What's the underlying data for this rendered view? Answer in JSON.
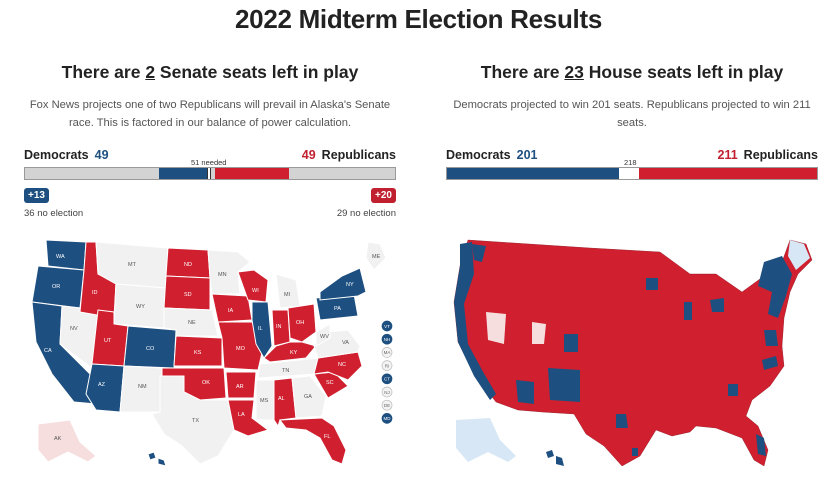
{
  "page": {
    "title": "2022 Midterm Election Results"
  },
  "colors": {
    "dem": "#1d4f80",
    "rep": "#d01f2f",
    "no_election": "#d3d3d3",
    "toss": "#f1f1f1",
    "lean_rep_light": "#f7dede"
  },
  "senate": {
    "title_pre": "There are ",
    "title_num": "2",
    "title_post": " Senate seats left in play",
    "desc": "Fox News projects one of two Republicans will prevail in Alaska's Senate race. This is factored in our balance of power calculation.",
    "dem_label": "Democrats",
    "dem_count": "49",
    "rep_label": "Republicans",
    "rep_count": "49",
    "needed_label": "51 needed",
    "dem_gain_badge": "+13",
    "rep_gain_badge": "+20",
    "dem_no_election": "36 no election",
    "rep_no_election": "29 no election",
    "bar": {
      "total": 100,
      "dem_no_election": 36,
      "dem_up": 13,
      "rep_up": 20,
      "rep_no_election": 29
    },
    "state_labels": {
      "WA": "WA",
      "OR": "OR",
      "CA": "CA",
      "NV": "NV",
      "ID": "ID",
      "UT": "UT",
      "AZ": "AZ",
      "MT": "MT",
      "WY": "WY",
      "CO": "CO",
      "NM": "NM",
      "ND": "ND",
      "SD": "SD",
      "NE": "NE",
      "KS": "KS",
      "OK": "OK",
      "TX": "TX",
      "MN": "MN",
      "IA": "IA",
      "MO": "MO",
      "AR": "AR",
      "LA": "LA",
      "WI": "WI",
      "IL": "IL",
      "MI": "MI",
      "IN": "IN",
      "OH": "OH",
      "KY": "KY",
      "TN": "TN",
      "MS": "MS",
      "AL": "AL",
      "GA": "GA",
      "FL": "FL",
      "SC": "SC",
      "NC": "NC",
      "VA": "VA",
      "WV": "WV",
      "PA": "PA",
      "NY": "NY",
      "ME": "ME",
      "AK": "AK",
      "HI": "HI"
    },
    "small_states": [
      "VT",
      "NH",
      "MA",
      "RI",
      "CT",
      "NJ",
      "DE",
      "MD"
    ]
  },
  "house": {
    "title_pre": "There are ",
    "title_num": "23",
    "title_post": " House seats left in play",
    "desc": "Democrats projected to win 201 seats. Republicans projected to win 211 seats.",
    "dem_label": "Democrats",
    "dem_count": "201",
    "rep_label": "Republicans",
    "rep_count": "211",
    "needed_label": "218",
    "bar": {
      "total": 435,
      "dem": 201,
      "undecided": 23,
      "rep": 211
    }
  }
}
